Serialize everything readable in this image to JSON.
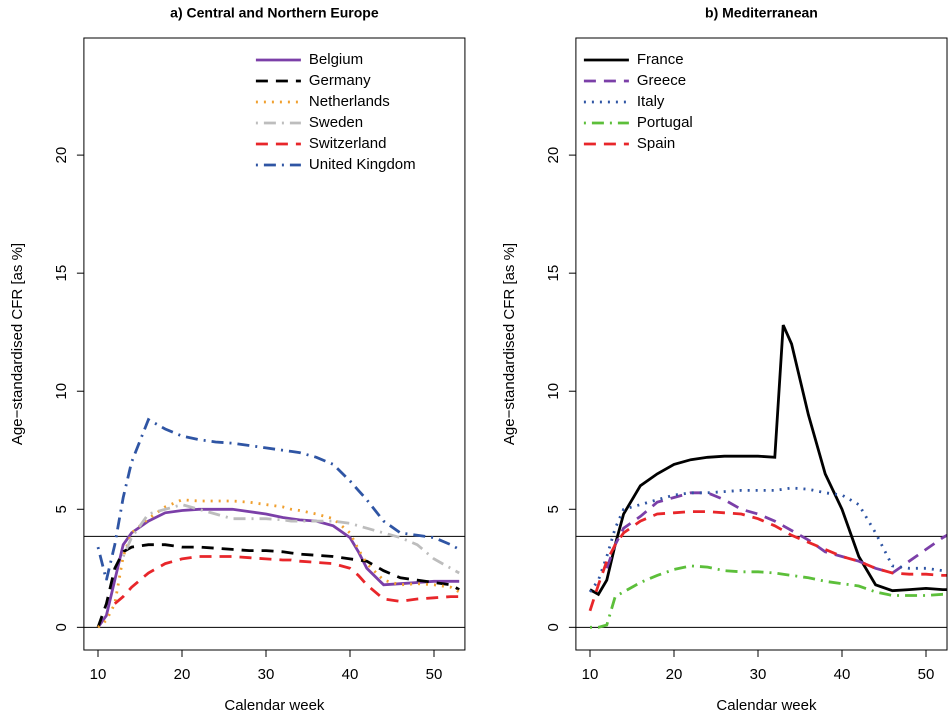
{
  "chart_data": [
    {
      "type": "line",
      "title": "a) Central and Northern Europe",
      "xlabel": "Calendar week",
      "ylabel": "Age−standardised CFR [as %]",
      "x": [
        10,
        11,
        12,
        13,
        14,
        16,
        18,
        20,
        22,
        24,
        26,
        28,
        30,
        32,
        33,
        34,
        36,
        38,
        40,
        41,
        42,
        44,
        46,
        48,
        50,
        52,
        53
      ],
      "xlim": [
        8.32,
        53.68
      ],
      "ylim": [
        -0.96,
        24.96
      ],
      "xticks": [
        10,
        20,
        30,
        40,
        50
      ],
      "yticks": [
        0,
        5,
        10,
        15,
        20
      ],
      "reference_lines": [
        0,
        3.85
      ],
      "legend": "topright",
      "series": [
        {
          "name": "Belgium",
          "color": "#7b3fa8",
          "dash": "solid",
          "values": [
            0,
            0.5,
            2,
            3.5,
            4,
            4.5,
            4.85,
            4.95,
            5,
            5,
            5,
            4.9,
            4.8,
            4.65,
            4.6,
            4.55,
            4.5,
            4.3,
            3.8,
            3.2,
            2.5,
            1.8,
            1.85,
            1.9,
            1.95,
            1.95,
            1.95
          ]
        },
        {
          "name": "Germany",
          "color": "#000000",
          "dash": "dashed",
          "values": [
            0,
            1,
            2.5,
            3.2,
            3.4,
            3.5,
            3.5,
            3.4,
            3.4,
            3.35,
            3.3,
            3.25,
            3.25,
            3.2,
            3.15,
            3.1,
            3.05,
            3,
            2.9,
            2.85,
            2.8,
            2.4,
            2.1,
            2,
            1.9,
            1.8,
            1.6
          ]
        },
        {
          "name": "Netherlands",
          "color": "#f0a030",
          "dash": "dotted",
          "values": [
            0,
            0.3,
            1,
            3,
            4,
            4.6,
            5.1,
            5.4,
            5.35,
            5.35,
            5.35,
            5.3,
            5.2,
            5.1,
            5,
            4.95,
            4.8,
            4.6,
            4,
            3.3,
            2.7,
            2,
            1.8,
            1.85,
            1.8,
            1.7,
            1.5
          ]
        },
        {
          "name": "Sweden",
          "color": "#bdbdbd",
          "dash": "dotdash",
          "values": [
            null,
            null,
            null,
            3,
            3.8,
            4.8,
            5,
            5.2,
            5,
            4.8,
            4.6,
            4.6,
            4.6,
            4.55,
            4.5,
            4.5,
            4.5,
            4.5,
            4.4,
            4.3,
            4.2,
            4,
            3.8,
            3.5,
            2.9,
            2.5,
            2.3
          ]
        },
        {
          "name": "Switzerland",
          "color": "#e8262a",
          "dash": "dashed",
          "values": [
            null,
            null,
            1,
            1.3,
            1.7,
            2.3,
            2.7,
            2.9,
            3,
            3,
            3,
            2.95,
            2.9,
            2.85,
            2.85,
            2.8,
            2.75,
            2.7,
            2.5,
            2.2,
            1.8,
            1.2,
            1.1,
            1.2,
            1.25,
            1.3,
            1.3
          ]
        },
        {
          "name": "United Kingdom",
          "color": "#2f55a4",
          "dash": "dotdash",
          "values": [
            3.4,
            2,
            3.5,
            5.5,
            7,
            8.8,
            8.4,
            8.1,
            7.95,
            7.85,
            7.8,
            7.7,
            7.6,
            7.5,
            7.45,
            7.4,
            7.2,
            6.9,
            6.2,
            5.8,
            5.4,
            4.5,
            4,
            3.9,
            3.8,
            3.5,
            3.3
          ]
        }
      ]
    },
    {
      "type": "line",
      "title": "b) Mediterranean",
      "xlabel": "Calendar week",
      "ylabel": "Age−standardised CFR [as %]",
      "x": [
        10,
        11,
        12,
        13,
        14,
        16,
        18,
        20,
        22,
        24,
        26,
        28,
        30,
        32,
        33,
        34,
        36,
        38,
        40,
        41,
        42,
        44,
        46,
        48,
        50,
        52,
        53
      ],
      "xlim": [
        8.32,
        52.5
      ],
      "ylim": [
        -0.96,
        24.96
      ],
      "xticks": [
        10,
        20,
        30,
        40,
        50
      ],
      "yticks": [
        0,
        5,
        10,
        15,
        20
      ],
      "reference_lines": [
        0,
        3.85
      ],
      "legend": "topleft",
      "series": [
        {
          "name": "France",
          "color": "#000000",
          "dash": "solid",
          "values": [
            1.6,
            1.4,
            2,
            3.5,
            4.8,
            6,
            6.5,
            6.9,
            7.1,
            7.2,
            7.25,
            7.25,
            7.25,
            7.2,
            12.8,
            12,
            9,
            6.5,
            5,
            4,
            3,
            1.8,
            1.55,
            1.6,
            1.65,
            1.6,
            1.6
          ]
        },
        {
          "name": "Greece",
          "color": "#7b3fa8",
          "dash": "dashed",
          "values": [
            null,
            null,
            2.5,
            3.5,
            4.2,
            4.7,
            5.3,
            5.5,
            5.7,
            5.7,
            5.4,
            5,
            4.8,
            4.5,
            4.3,
            4.1,
            3.7,
            3.2,
            3,
            2.9,
            2.8,
            2.5,
            2.3,
            2.8,
            3.3,
            3.8,
            4
          ]
        },
        {
          "name": "Italy",
          "color": "#2f55a4",
          "dash": "dotted",
          "values": [
            1.5,
            2,
            3,
            4.2,
            5,
            5.2,
            5.4,
            5.6,
            5.7,
            5.7,
            5.75,
            5.8,
            5.8,
            5.8,
            5.85,
            5.9,
            5.85,
            5.7,
            5.6,
            5.4,
            5.2,
            4,
            2.6,
            2.5,
            2.5,
            2.4,
            2.4
          ]
        },
        {
          "name": "Portugal",
          "color": "#5cbf3a",
          "dash": "dotdash",
          "values": [
            0,
            0,
            0.1,
            1.3,
            1.5,
            1.9,
            2.2,
            2.45,
            2.6,
            2.55,
            2.4,
            2.35,
            2.35,
            2.3,
            2.25,
            2.2,
            2.1,
            1.95,
            1.85,
            1.8,
            1.75,
            1.5,
            1.35,
            1.35,
            1.35,
            1.4,
            1.4
          ]
        },
        {
          "name": "Spain",
          "color": "#e8262a",
          "dash": "dashed",
          "values": [
            0.7,
            1.8,
            2.8,
            3.5,
            4,
            4.5,
            4.8,
            4.85,
            4.9,
            4.9,
            4.85,
            4.8,
            4.6,
            4.3,
            4.1,
            3.9,
            3.6,
            3.3,
            3,
            2.9,
            2.8,
            2.5,
            2.3,
            2.25,
            2.25,
            2.2,
            2.2
          ]
        }
      ]
    }
  ]
}
